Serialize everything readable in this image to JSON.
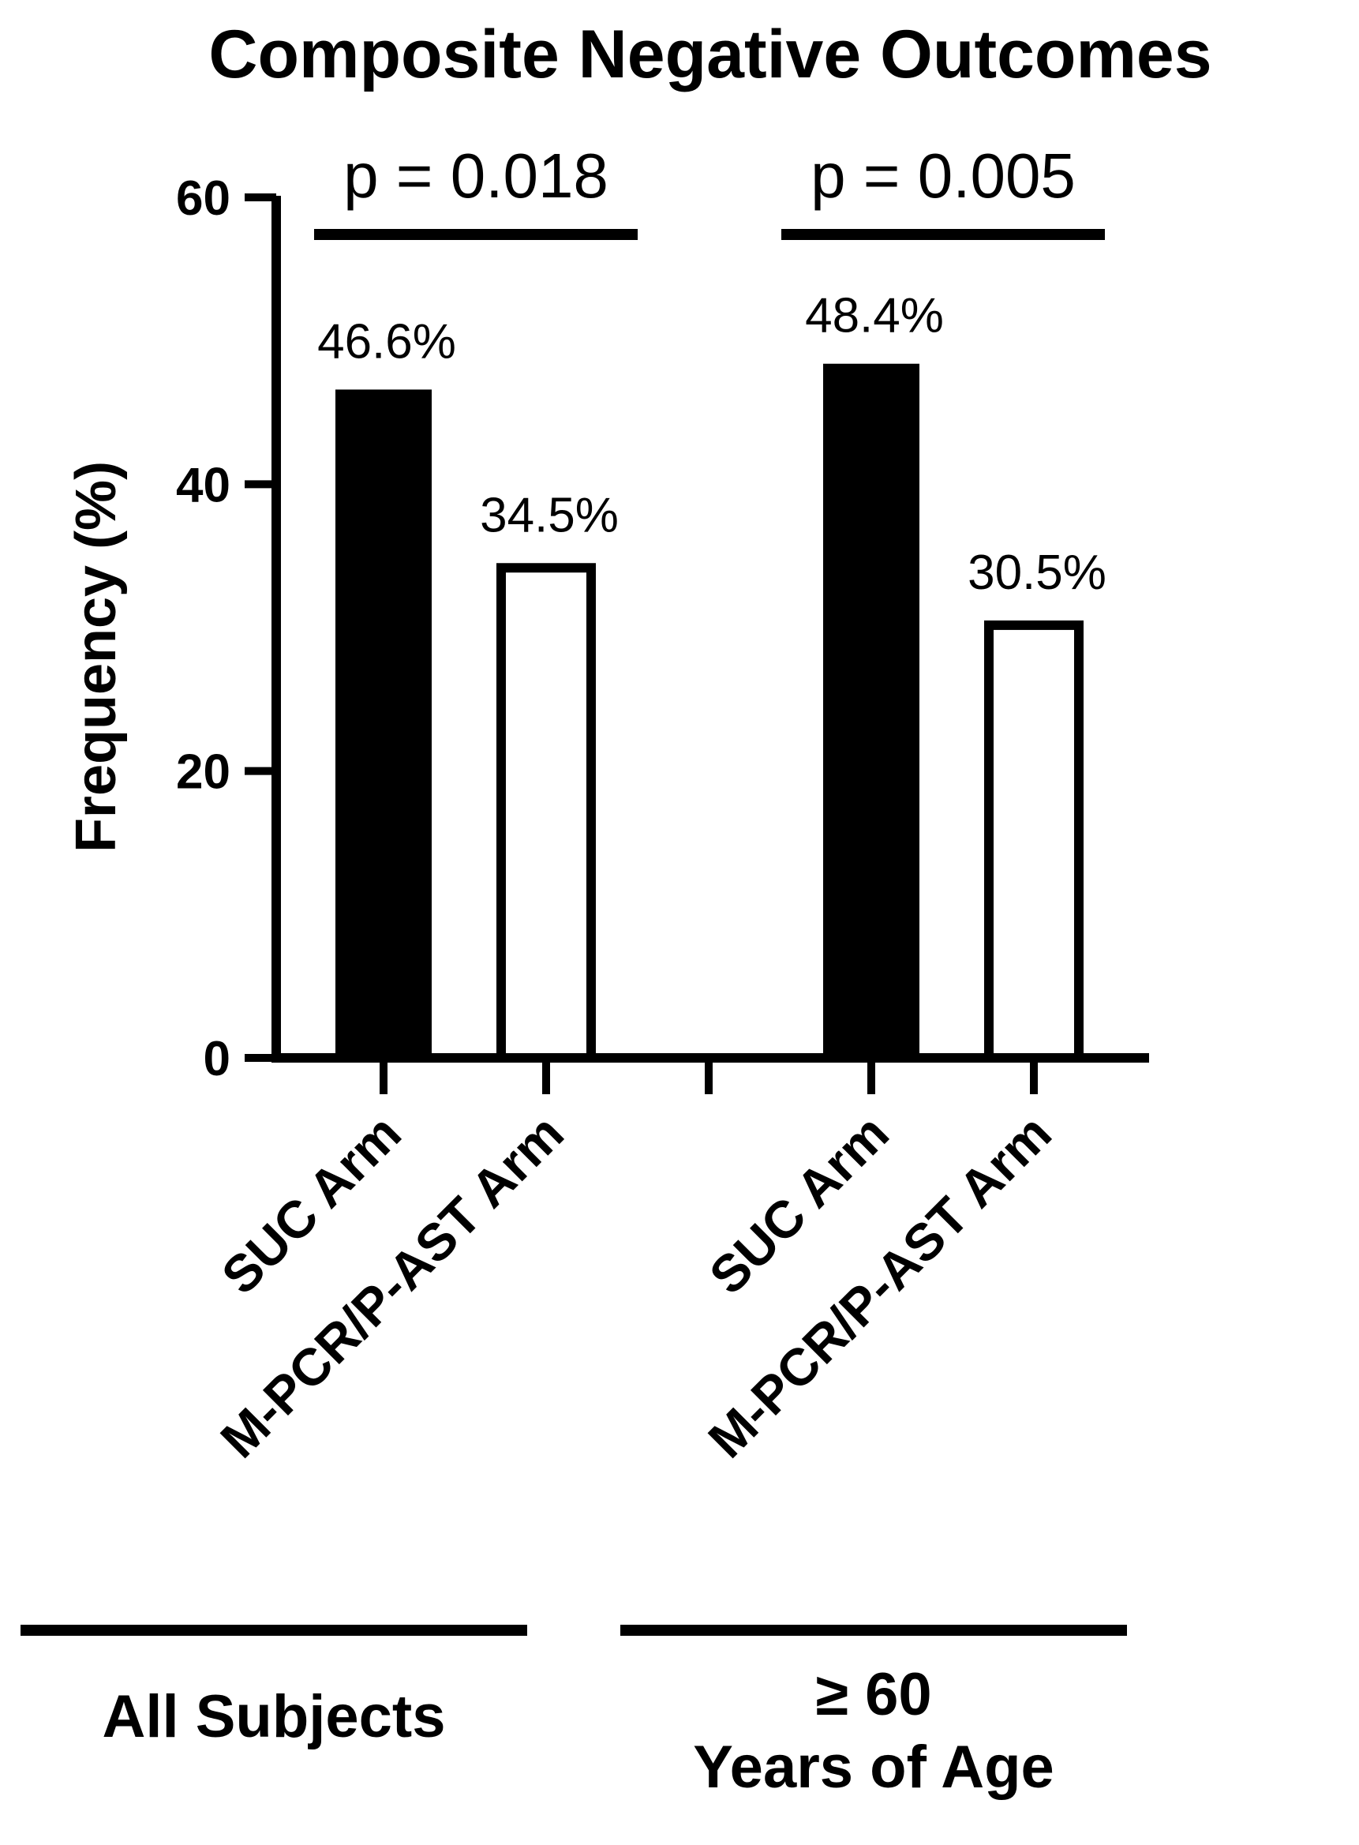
{
  "chart_data": {
    "type": "bar",
    "title": "Composite Negative Outcomes",
    "ylabel": "Frequency (%)",
    "xlabel": "",
    "ylim": [
      0,
      60
    ],
    "yticks": [
      "0",
      "20",
      "40",
      "60"
    ],
    "grid": false,
    "groups": [
      {
        "label": "All Subjects",
        "label_lines": [
          "All Subjects"
        ],
        "p_value": "p = 0.018",
        "bars": [
          {
            "category": "SUC Arm",
            "value": 46.6,
            "label": "46.6%",
            "fill": "#000000"
          },
          {
            "category": "M-PCR/P-AST Arm",
            "value": 34.5,
            "label": "34.5%",
            "fill": "#ffffff"
          }
        ]
      },
      {
        "label": "≥ 60 Years of Age",
        "label_lines": [
          "≥ 60",
          "Years of Age"
        ],
        "p_value": "p = 0.005",
        "bars": [
          {
            "category": "SUC Arm",
            "value": 48.4,
            "label": "48.4%",
            "fill": "#000000"
          },
          {
            "category": "M-PCR/P-AST Arm",
            "value": 30.5,
            "label": "30.5%",
            "fill": "#ffffff"
          }
        ]
      }
    ]
  }
}
